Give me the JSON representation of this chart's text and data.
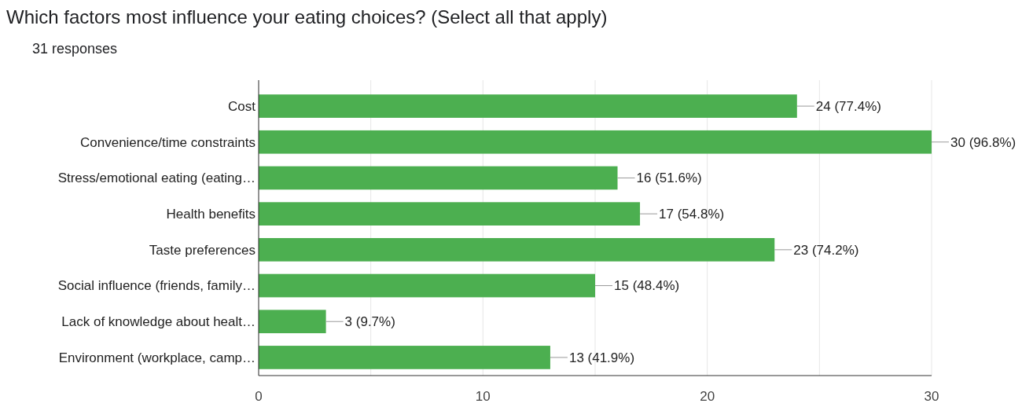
{
  "chart_data": {
    "type": "bar",
    "orientation": "horizontal",
    "title": "Which factors most influence your eating choices? (Select all that apply)",
    "subtitle": "31 responses",
    "categories": [
      "Cost",
      "Convenience/time constraints",
      "Stress/emotional eating (eating…",
      "Health benefits",
      "Taste preferences",
      "Social influence (friends, family…",
      "Lack of knowledge about healt…",
      "Environment (workplace, camp…"
    ],
    "values": [
      24,
      30,
      16,
      17,
      23,
      15,
      3,
      13
    ],
    "value_labels": [
      "24 (77.4%)",
      "30 (96.8%)",
      "16 (51.6%)",
      "17 (54.8%)",
      "23 (74.2%)",
      "15 (48.4%)",
      "3 (9.7%)",
      "13 (41.9%)"
    ],
    "color": "#4caf50",
    "xlim": [
      0,
      30
    ],
    "xticks": [
      0,
      {
        "value": 5,
        "label": null
      },
      10,
      {
        "value": 15,
        "label": null
      },
      20,
      {
        "value": 25,
        "label": null
      },
      30
    ],
    "grid": "x"
  }
}
